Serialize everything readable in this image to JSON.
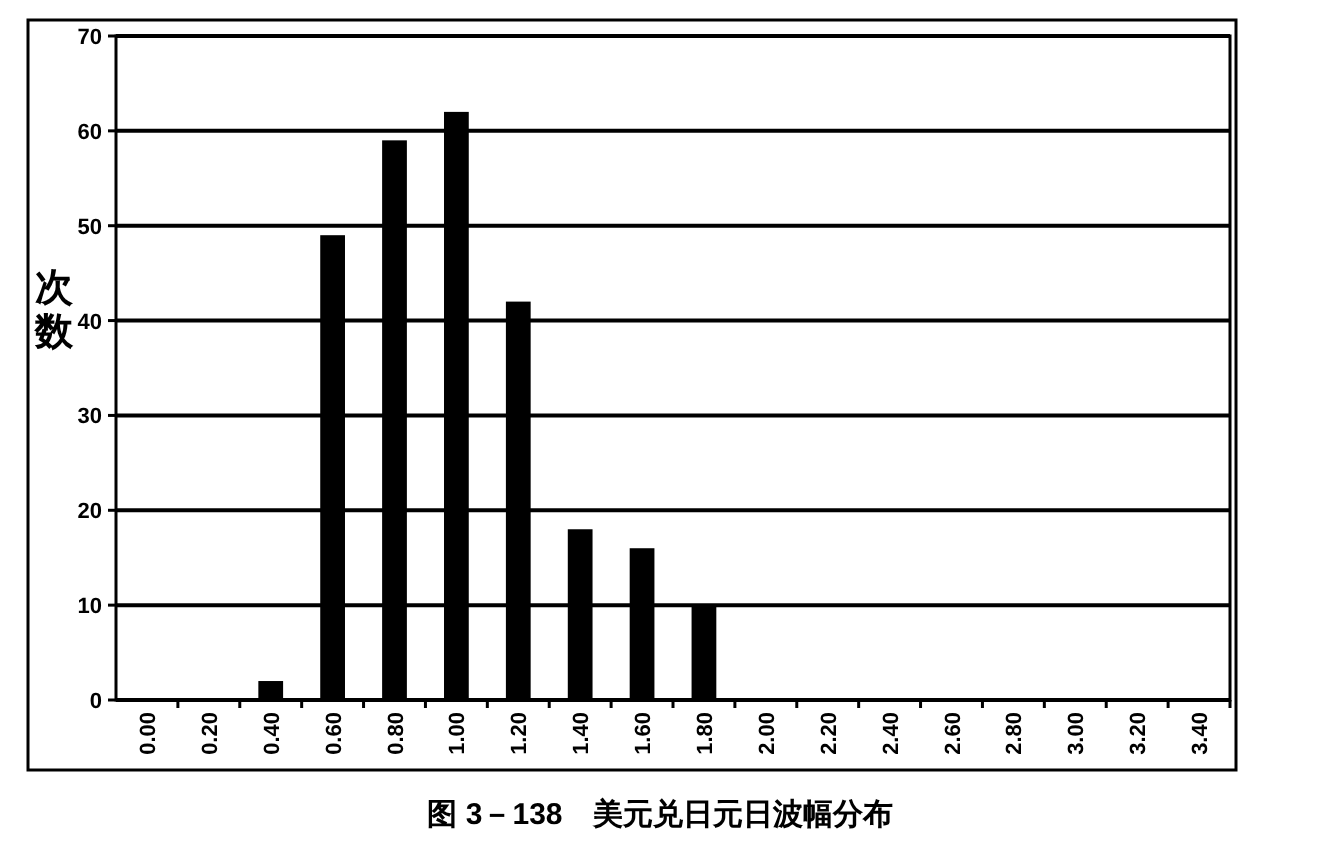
{
  "chart_data": {
    "type": "bar",
    "title": "图 3－138　美元兑日元日波幅分布",
    "ylabel": "次数",
    "categories": [
      "0.00",
      "0.20",
      "0.40",
      "0.60",
      "0.80",
      "1.00",
      "1.20",
      "1.40",
      "1.60",
      "1.80",
      "2.00",
      "2.20",
      "2.40",
      "2.60",
      "2.80",
      "3.00",
      "3.20",
      "3.40"
    ],
    "values": [
      0,
      0,
      2,
      49,
      59,
      62,
      42,
      18,
      16,
      10,
      0,
      0,
      0,
      0,
      0,
      0,
      0,
      0
    ],
    "color": "#000000",
    "ylim": [
      0,
      70
    ],
    "yticks": [
      0,
      10,
      20,
      30,
      40,
      50,
      60,
      70
    ],
    "grid": "y"
  }
}
